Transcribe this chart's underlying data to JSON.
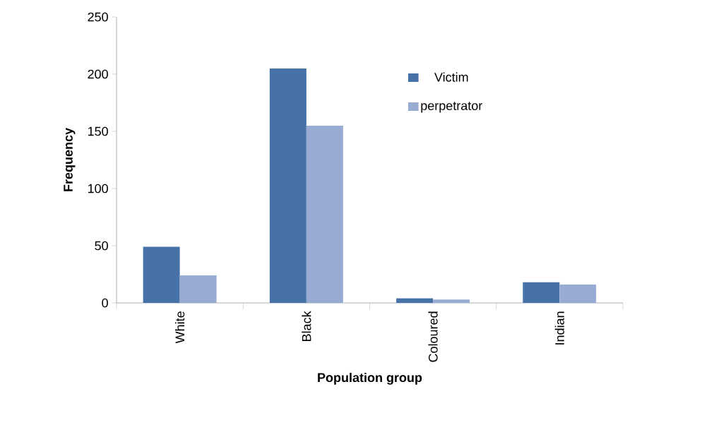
{
  "chart_data": {
    "type": "bar",
    "xlabel": "Population group",
    "ylabel": "Frequency",
    "categories": [
      "White",
      "Black",
      "Coloured",
      "Indian"
    ],
    "series": [
      {
        "name": "Victim",
        "color": "#4672a8",
        "values": [
          49,
          205,
          4,
          18
        ]
      },
      {
        "name": "perpetrator",
        "color": "#97abd3",
        "values": [
          24,
          155,
          3,
          16
        ]
      }
    ],
    "ylim": [
      0,
      250
    ],
    "yticks": [
      0,
      50,
      100,
      150,
      200,
      250
    ],
    "legend": "top right"
  }
}
